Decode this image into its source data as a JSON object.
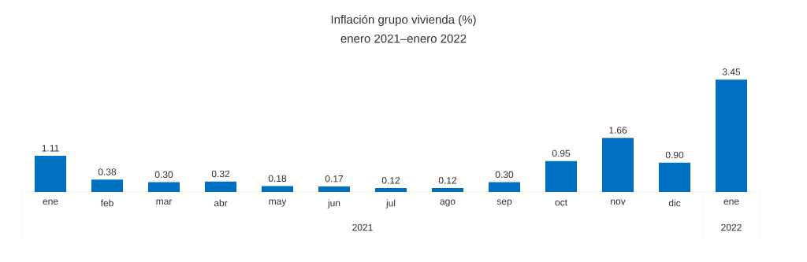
{
  "chart_data": {
    "type": "bar",
    "title": "Inflación grupo vivienda (%)",
    "subtitle": "enero 2021–enero 2022",
    "categories": [
      "ene",
      "feb",
      "mar",
      "abr",
      "may",
      "jun",
      "jul",
      "ago",
      "sep",
      "oct",
      "nov",
      "dic",
      "ene"
    ],
    "values": [
      1.11,
      0.38,
      0.3,
      0.32,
      0.18,
      0.17,
      0.12,
      0.12,
      0.3,
      0.95,
      1.66,
      0.9,
      3.45
    ],
    "value_labels": [
      "1.11",
      "0.38",
      "0.30",
      "0.32",
      "0.18",
      "0.17",
      "0.12",
      "0.12",
      "0.30",
      "0.95",
      "1.66",
      "0.90",
      "3.45"
    ],
    "color": "#0070c0",
    "annotations": [
      "2021",
      "2022"
    ]
  }
}
